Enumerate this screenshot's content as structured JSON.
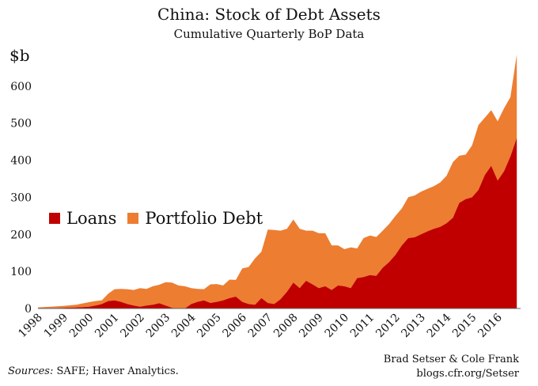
{
  "title": "China: Stock of Debt Assets",
  "subtitle": "Cumulative Quarterly BoP Data",
  "sources_label": "Sources:",
  "sources_text": " SAFE; Haver Analytics.",
  "credit_line1": "Brad Setser & Cole Frank",
  "credit_line2": "blogs.cfr.org/Setser",
  "colors": {
    "loans": "#c00000",
    "portfolio": "#ed7d31"
  },
  "chart_data": {
    "type": "area",
    "stacked": true,
    "ylabel": "$b",
    "ylim": [
      0,
      700
    ],
    "yticks": [
      0,
      100,
      200,
      300,
      400,
      500,
      600
    ],
    "xticks": [
      "1998",
      "1999",
      "2000",
      "2001",
      "2002",
      "2003",
      "2004",
      "2005",
      "2006",
      "2007",
      "2008",
      "2009",
      "2010",
      "2011",
      "2012",
      "2013",
      "2014",
      "2015",
      "2016"
    ],
    "grid": false,
    "legend": "center-left",
    "x": [
      1998.0,
      1998.5,
      1999.0,
      1999.5,
      2000.0,
      2000.25,
      2000.5,
      2000.75,
      2001.0,
      2001.25,
      2001.5,
      2001.75,
      2002.0,
      2002.25,
      2002.5,
      2002.75,
      2003.0,
      2003.25,
      2003.5,
      2003.75,
      2004.0,
      2004.25,
      2004.5,
      2004.75,
      2005.0,
      2005.25,
      2005.5,
      2005.75,
      2006.0,
      2006.25,
      2006.5,
      2006.75,
      2007.0,
      2007.25,
      2007.5,
      2007.75,
      2008.0,
      2008.25,
      2008.5,
      2008.75,
      2009.0,
      2009.25,
      2009.5,
      2009.75,
      2010.0,
      2010.25,
      2010.5,
      2010.75,
      2011.0,
      2011.25,
      2011.5,
      2011.75,
      2012.0,
      2012.25,
      2012.5,
      2012.75,
      2013.0,
      2013.25,
      2013.5,
      2013.75,
      2014.0,
      2014.25,
      2014.5,
      2014.75,
      2015.0,
      2015.25,
      2015.5,
      2015.75,
      2016.0,
      2016.25,
      2016.5,
      2016.75
    ],
    "series": [
      {
        "name": "Loans",
        "values": [
          0,
          1,
          2,
          3,
          5,
          8,
          12,
          20,
          22,
          18,
          12,
          8,
          5,
          8,
          10,
          14,
          8,
          2,
          0,
          0,
          12,
          18,
          22,
          15,
          18,
          22,
          28,
          32,
          18,
          12,
          10,
          28,
          15,
          12,
          25,
          45,
          70,
          55,
          75,
          65,
          55,
          60,
          50,
          62,
          60,
          55,
          82,
          85,
          90,
          88,
          110,
          125,
          145,
          170,
          190,
          192,
          200,
          208,
          215,
          220,
          230,
          245,
          285,
          295,
          300,
          320,
          360,
          385,
          345,
          370,
          410,
          460
        ]
      },
      {
        "name": "Portfolio Debt",
        "values": [
          3,
          4,
          5,
          7,
          12,
          12,
          10,
          20,
          30,
          35,
          40,
          42,
          50,
          45,
          50,
          50,
          63,
          68,
          62,
          60,
          43,
          35,
          30,
          50,
          48,
          40,
          50,
          45,
          90,
          100,
          125,
          125,
          198,
          200,
          185,
          170,
          170,
          160,
          135,
          145,
          148,
          143,
          120,
          108,
          100,
          110,
          80,
          105,
          107,
          105,
          100,
          103,
          105,
          100,
          110,
          113,
          115,
          115,
          115,
          120,
          128,
          150,
          127,
          120,
          140,
          175,
          155,
          150,
          160,
          170,
          160,
          225
        ]
      }
    ]
  }
}
